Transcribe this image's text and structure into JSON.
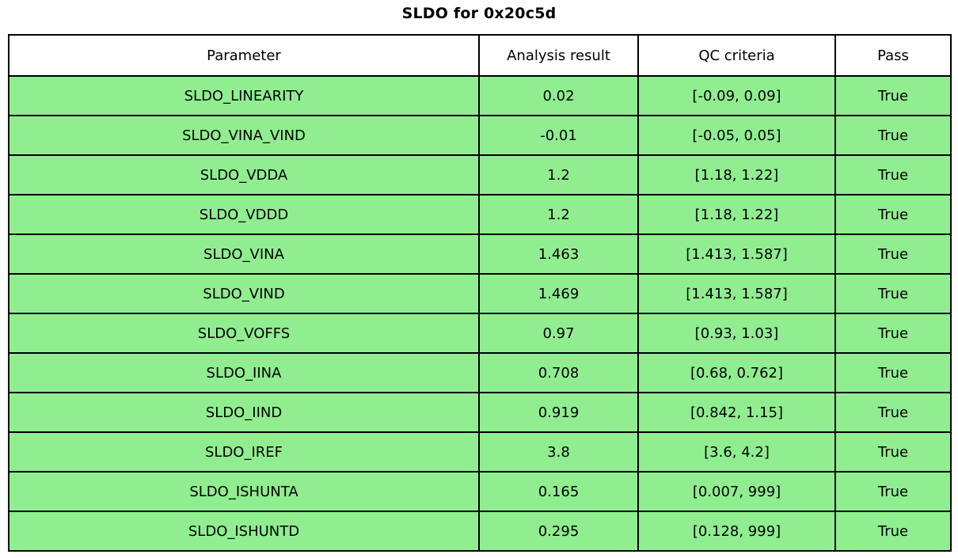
{
  "title": "SLDO for 0x20c5d",
  "colors": {
    "pass_row_bg": "#90ee90",
    "header_bg": "#ffffff",
    "border": "#000000",
    "text": "#000000"
  },
  "table": {
    "headers": [
      "Parameter",
      "Analysis result",
      "QC criteria",
      "Pass"
    ],
    "rows": [
      {
        "parameter": "SLDO_LINEARITY",
        "result": "0.02",
        "criteria": "[-0.09, 0.09]",
        "pass": "True"
      },
      {
        "parameter": "SLDO_VINA_VIND",
        "result": "-0.01",
        "criteria": "[-0.05, 0.05]",
        "pass": "True"
      },
      {
        "parameter": "SLDO_VDDA",
        "result": "1.2",
        "criteria": "[1.18, 1.22]",
        "pass": "True"
      },
      {
        "parameter": "SLDO_VDDD",
        "result": "1.2",
        "criteria": "[1.18, 1.22]",
        "pass": "True"
      },
      {
        "parameter": "SLDO_VINA",
        "result": "1.463",
        "criteria": "[1.413, 1.587]",
        "pass": "True"
      },
      {
        "parameter": "SLDO_VIND",
        "result": "1.469",
        "criteria": "[1.413, 1.587]",
        "pass": "True"
      },
      {
        "parameter": "SLDO_VOFFS",
        "result": "0.97",
        "criteria": "[0.93, 1.03]",
        "pass": "True"
      },
      {
        "parameter": "SLDO_IINA",
        "result": "0.708",
        "criteria": "[0.68, 0.762]",
        "pass": "True"
      },
      {
        "parameter": "SLDO_IIND",
        "result": "0.919",
        "criteria": "[0.842, 1.15]",
        "pass": "True"
      },
      {
        "parameter": "SLDO_IREF",
        "result": "3.8",
        "criteria": "[3.6, 4.2]",
        "pass": "True"
      },
      {
        "parameter": "SLDO_ISHUNTA",
        "result": "0.165",
        "criteria": "[0.007, 999]",
        "pass": "True"
      },
      {
        "parameter": "SLDO_ISHUNTD",
        "result": "0.295",
        "criteria": "[0.128, 999]",
        "pass": "True"
      }
    ]
  },
  "chart_data": {
    "type": "table",
    "title": "SLDO for 0x20c5d",
    "columns": [
      "Parameter",
      "Analysis result",
      "QC criteria",
      "Pass"
    ],
    "rows": [
      [
        "SLDO_LINEARITY",
        0.02,
        "[-0.09, 0.09]",
        "True"
      ],
      [
        "SLDO_VINA_VIND",
        -0.01,
        "[-0.05, 0.05]",
        "True"
      ],
      [
        "SLDO_VDDA",
        1.2,
        "[1.18, 1.22]",
        "True"
      ],
      [
        "SLDO_VDDD",
        1.2,
        "[1.18, 1.22]",
        "True"
      ],
      [
        "SLDO_VINA",
        1.463,
        "[1.413, 1.587]",
        "True"
      ],
      [
        "SLDO_VIND",
        1.469,
        "[1.413, 1.587]",
        "True"
      ],
      [
        "SLDO_VOFFS",
        0.97,
        "[0.93, 1.03]",
        "True"
      ],
      [
        "SLDO_IINA",
        0.708,
        "[0.68, 0.762]",
        "True"
      ],
      [
        "SLDO_IIND",
        0.919,
        "[0.842, 1.15]",
        "True"
      ],
      [
        "SLDO_IREF",
        3.8,
        "[3.6, 4.2]",
        "True"
      ],
      [
        "SLDO_ISHUNTA",
        0.165,
        "[0.007, 999]",
        "True"
      ],
      [
        "SLDO_ISHUNTD",
        0.295,
        "[0.128, 999]",
        "True"
      ]
    ],
    "pass_row_color": "#90ee90",
    "header_row_color": "#ffffff",
    "all_rows_pass": true
  }
}
